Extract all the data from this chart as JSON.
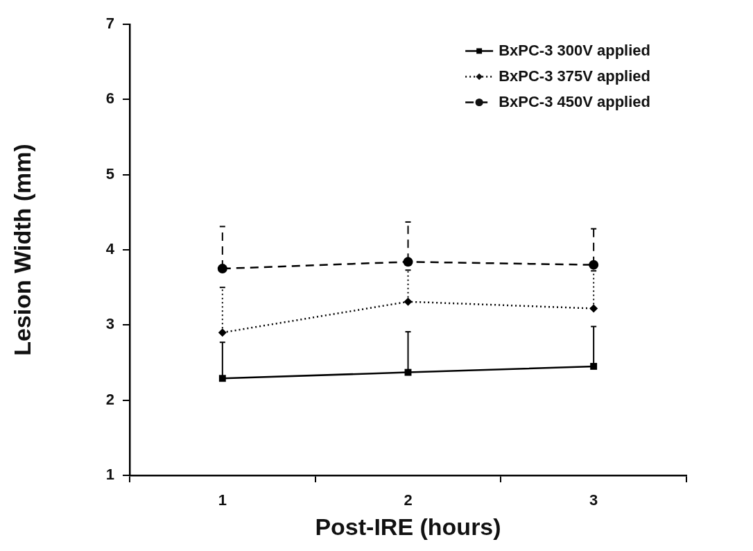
{
  "chart_data": {
    "type": "line",
    "xlabel": "Post-IRE (hours)",
    "ylabel": "Lesion Width (mm)",
    "categories": [
      "1",
      "2",
      "3"
    ],
    "series": [
      {
        "name": "BxPC-3 300V applied",
        "color": "#000000",
        "marker": "square",
        "line_style": "solid",
        "values": [
          2.29,
          2.37,
          2.45
        ],
        "errors": [
          [
            2.29,
            2.77
          ],
          [
            2.37,
            2.91
          ],
          [
            2.45,
            2.98
          ]
        ]
      },
      {
        "name": "BxPC-3 375V applied",
        "color": "#000000",
        "marker": "diamond",
        "line_style": "dotted",
        "values": [
          2.9,
          3.31,
          3.22
        ],
        "errors": [
          [
            2.9,
            3.5
          ],
          [
            3.31,
            3.73
          ],
          [
            3.22,
            3.72
          ]
        ]
      },
      {
        "name": "BxPC-3 450V applied",
        "color": "#000000",
        "marker": "circle",
        "line_style": "dashed",
        "values": [
          3.75,
          3.84,
          3.8
        ],
        "errors": [
          [
            3.75,
            4.31
          ],
          [
            3.84,
            4.37
          ],
          [
            3.8,
            4.28
          ]
        ]
      }
    ],
    "ylim": [
      1,
      7
    ],
    "yticks": [
      1,
      2,
      3,
      4,
      5,
      6,
      7
    ],
    "grid": false,
    "legend": "top right"
  }
}
